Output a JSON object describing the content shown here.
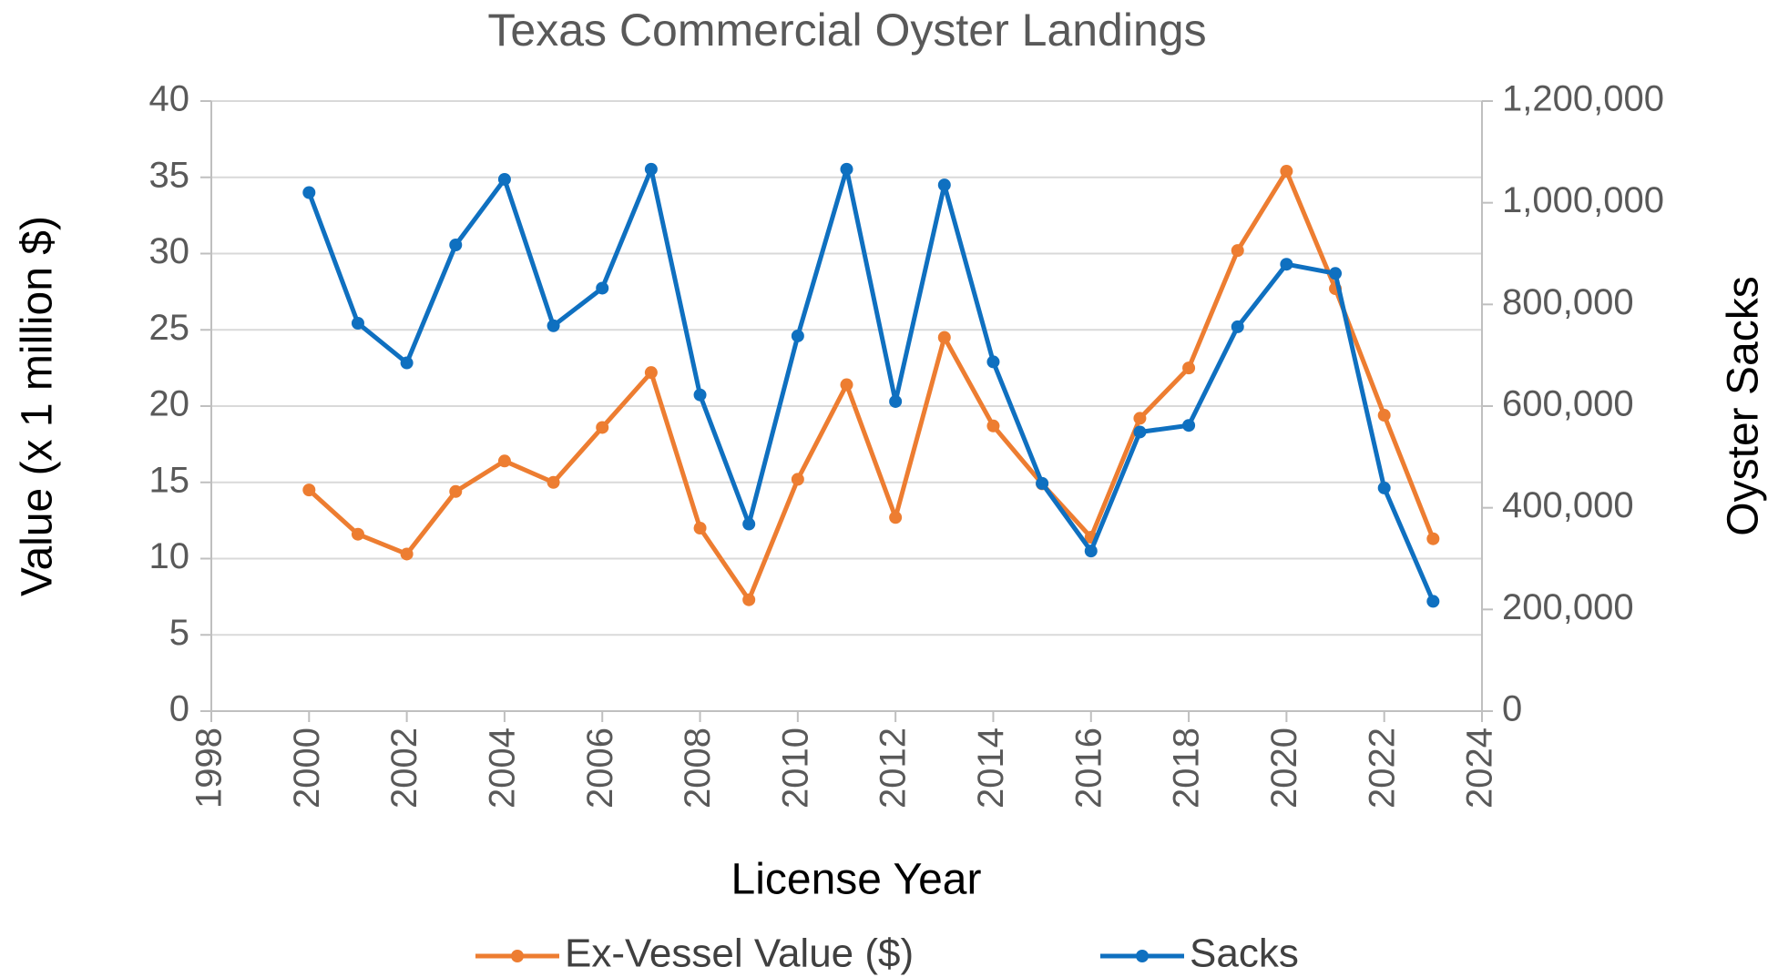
{
  "chart_data": {
    "type": "line",
    "title": "Texas Commercial Oyster Landings",
    "x_label": "License Year",
    "y_label": "Value (x 1 million $)",
    "y2_label": "Oyster Sacks",
    "x": [
      2000,
      2001,
      2002,
      2003,
      2004,
      2005,
      2006,
      2007,
      2008,
      2009,
      2010,
      2011,
      2012,
      2013,
      2014,
      2015,
      2016,
      2017,
      2018,
      2019,
      2020,
      2021,
      2022,
      2023
    ],
    "xlim": [
      1998,
      2024
    ],
    "xticks": [
      1998,
      2000,
      2002,
      2004,
      2006,
      2008,
      2010,
      2012,
      2014,
      2016,
      2018,
      2020,
      2022,
      2024
    ],
    "ylim": [
      0,
      40
    ],
    "yticks": [
      0,
      5,
      10,
      15,
      20,
      25,
      30,
      35,
      40
    ],
    "y2lim": [
      0,
      1200000
    ],
    "y2ticks": [
      0,
      {
        "value": 200000,
        "label": "200,000"
      },
      {
        "value": 400000,
        "label": "400,000"
      },
      {
        "value": 600000,
        "label": "600,000"
      },
      {
        "value": 800000,
        "label": "800,000"
      },
      {
        "value": 1000000,
        "label": "1,000,000"
      },
      {
        "value": 1200000,
        "label": "1,200,000"
      }
    ],
    "grid": true,
    "legend": "bottom",
    "series": [
      {
        "name": "Ex-Vessel Value ($)",
        "color": "#ED7D31",
        "axis": "y",
        "values": [
          14.5,
          11.6,
          10.3,
          14.4,
          16.4,
          15.0,
          18.6,
          22.2,
          12.0,
          7.3,
          15.2,
          21.4,
          12.7,
          24.5,
          18.7,
          14.9,
          11.4,
          19.2,
          22.5,
          30.2,
          35.4,
          27.7,
          19.4,
          11.3
        ]
      },
      {
        "name": "Sacks",
        "color": "#0F70C0",
        "axis": "y2",
        "values": [
          1020000,
          763000,
          685000,
          917000,
          1046000,
          758000,
          832000,
          1066000,
          622000,
          368000,
          738000,
          1066000,
          609000,
          1035000,
          687000,
          448000,
          315000,
          549000,
          562000,
          756000,
          879000,
          861000,
          439000,
          216000
        ]
      }
    ]
  }
}
